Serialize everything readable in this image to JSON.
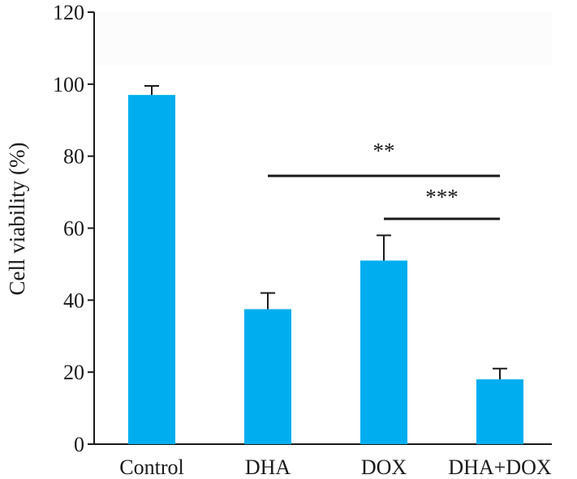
{
  "chart_data": {
    "type": "bar",
    "categories": [
      "Control",
      "DHA",
      "DOX",
      "DHA+DOX"
    ],
    "values": [
      97,
      37.5,
      51,
      18
    ],
    "errors": [
      2.5,
      4.5,
      7,
      3
    ],
    "xlabel": "",
    "ylabel": "Cell viability (%)",
    "ylim": [
      0,
      120
    ],
    "yticks": [
      "0",
      "20",
      "40",
      "60",
      "80",
      "100",
      "120"
    ],
    "grid": false,
    "legend": "none",
    "bar_color": "#00aeef",
    "significance": [
      {
        "from": "DHA",
        "to": "DHA+DOX",
        "label": "**"
      },
      {
        "from": "DOX",
        "to": "DHA+DOX",
        "label": "***"
      }
    ]
  }
}
